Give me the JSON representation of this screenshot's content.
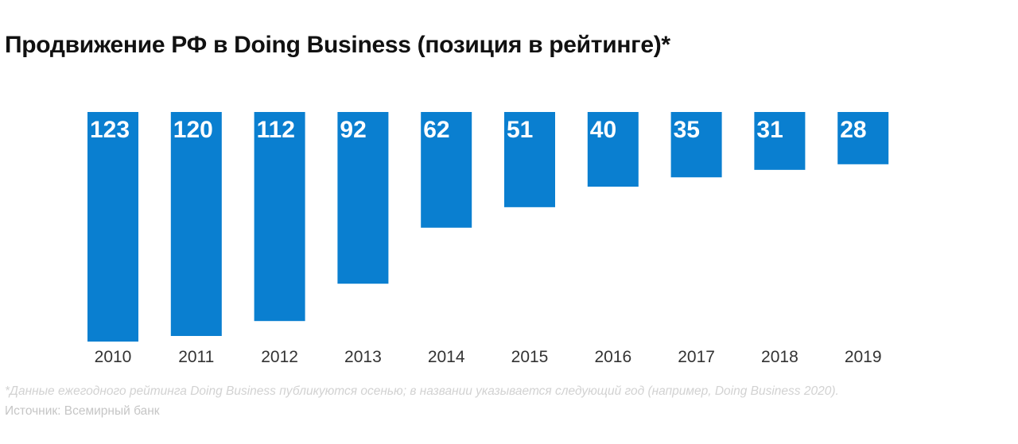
{
  "chart_data": {
    "type": "bar",
    "title": "Продвижение РФ в Doing Business (позиция в рейтинге)*",
    "categories": [
      "2010",
      "2011",
      "2012",
      "2013",
      "2014",
      "2015",
      "2016",
      "2017",
      "2018",
      "2019"
    ],
    "values": [
      123,
      120,
      112,
      92,
      62,
      51,
      40,
      35,
      31,
      28
    ],
    "value_labels": [
      "123",
      "120",
      "112",
      "92",
      "62",
      "51",
      "40",
      "35",
      "31",
      "28"
    ],
    "xlabel": "",
    "ylabel": "",
    "orientation": "bars hang down from top baseline",
    "grid": false,
    "legend": "none",
    "bar_color": "#0a7fd0",
    "label_color": "#ffffff"
  },
  "footnote": "*Данные ежегодного рейтинга Doing Business публикуются осенью; в названии указывается следующий год (например, Doing Business 2020).",
  "source": "Источник: Всемирный банк"
}
